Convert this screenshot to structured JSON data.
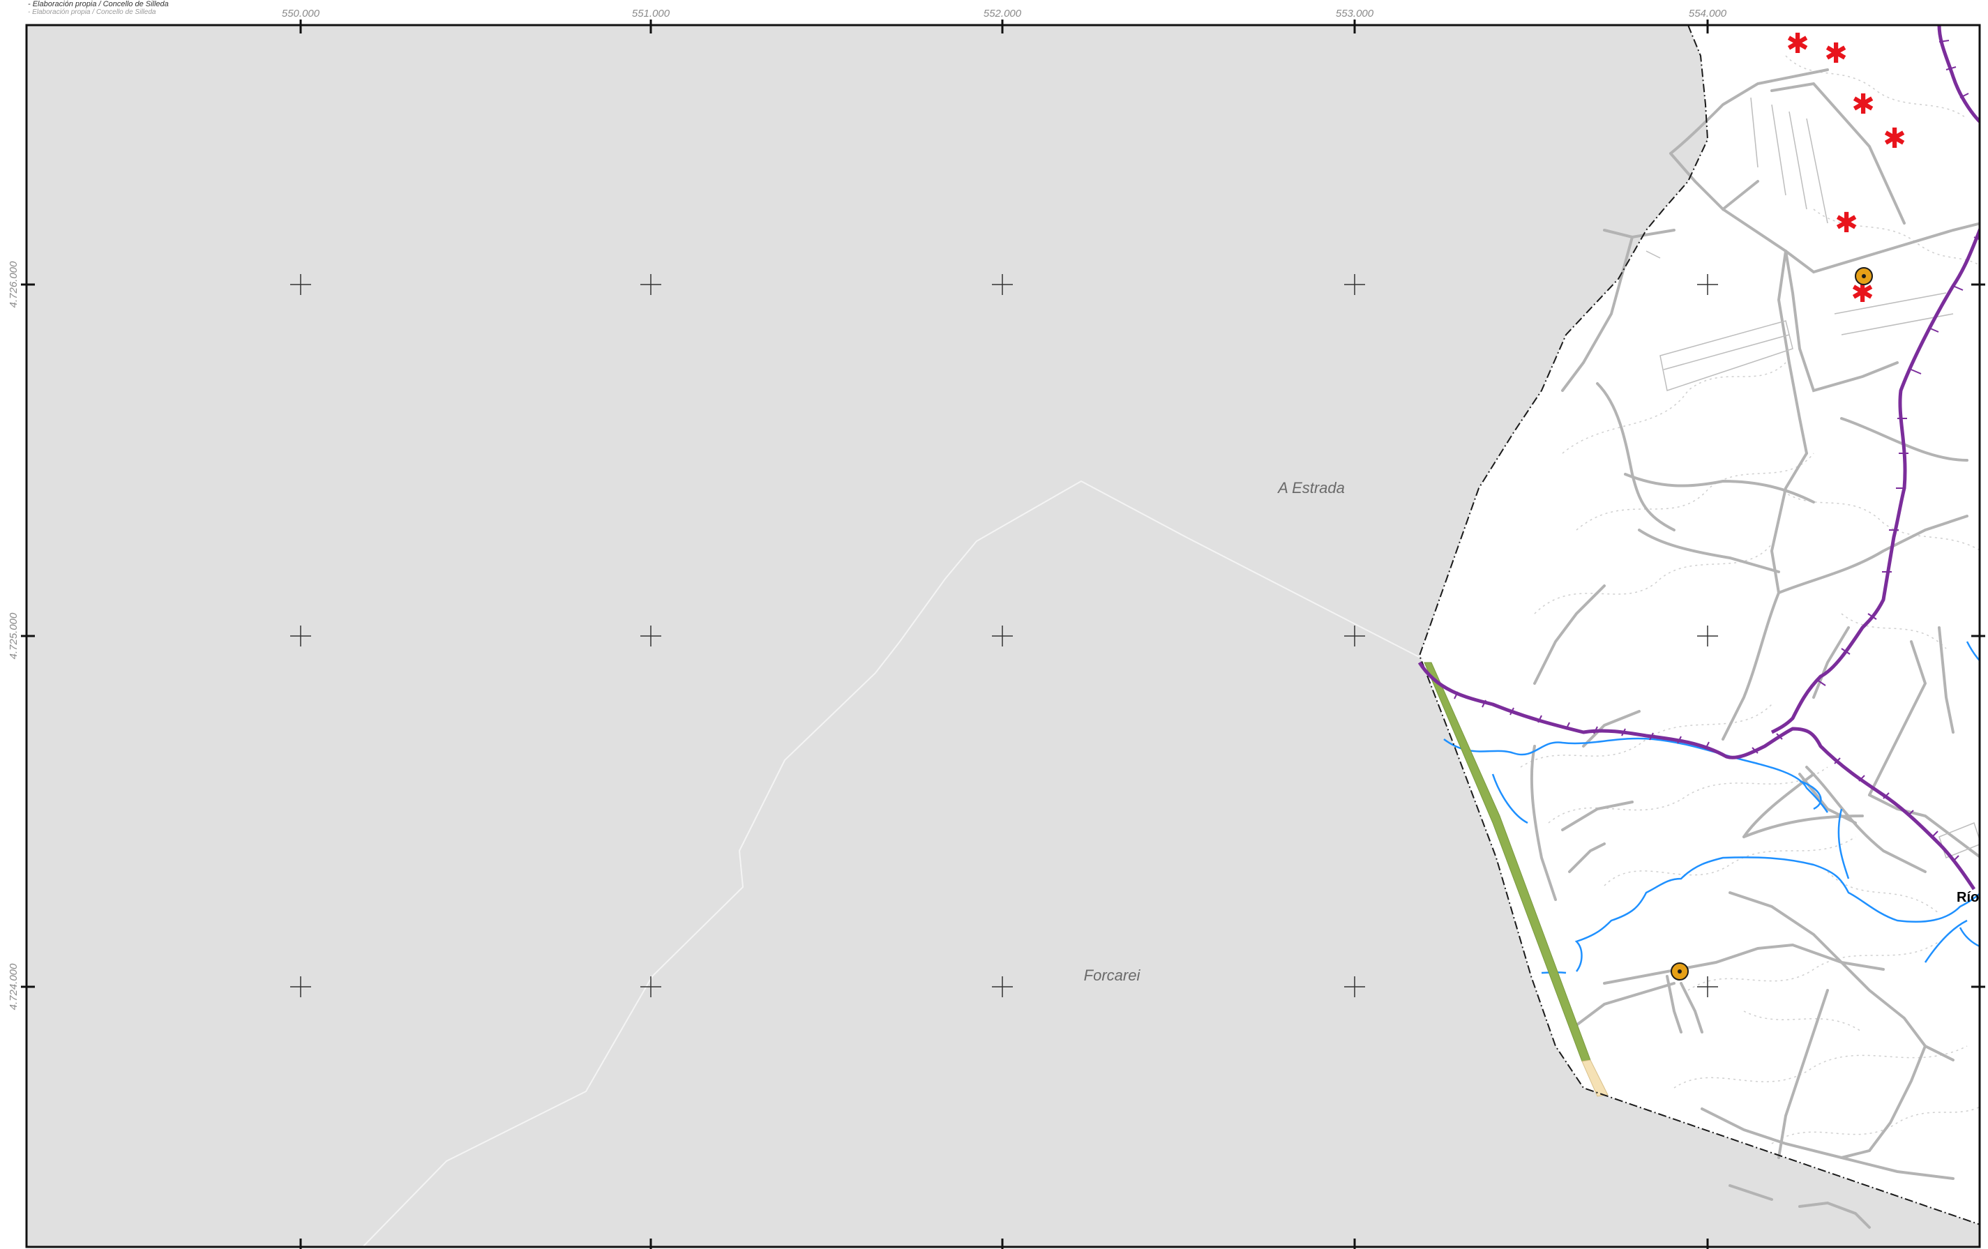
{
  "credits": {
    "line1": "- Elaboración propia / Concello de Silleda",
    "line2": "- Elaboración propia / Concello de Silleda"
  },
  "grid": {
    "x_labels": [
      "550.000",
      "551.000",
      "552.000",
      "553.000",
      "554.000"
    ],
    "y_labels": [
      "4.726.000",
      "4.725.000",
      "4.724.000"
    ]
  },
  "labels": {
    "municipality_north": "A Estrada",
    "municipality_south": "Forcarei",
    "village_partial": "Río"
  },
  "colors": {
    "outside_area": "#e0e0e0",
    "inside_area": "#ffffff",
    "road": "#b0b0b0",
    "contour": "#c8c8c8",
    "stream": "#1e90ff",
    "route": "#7b2d9b",
    "green_strip": "#8fb04e",
    "marker_orange": "#e6a017",
    "marker_red": "#e8141c"
  }
}
